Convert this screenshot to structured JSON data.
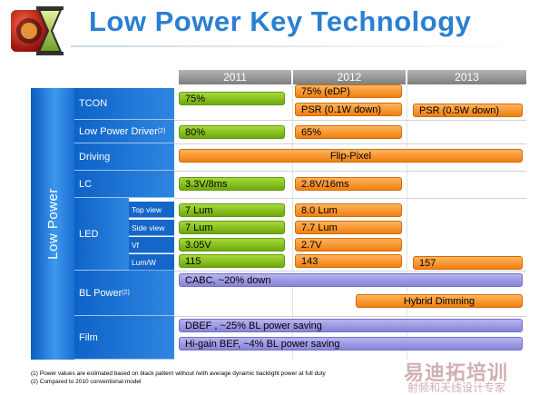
{
  "title": "Low Power Key Technology",
  "years": [
    "2011",
    "2012",
    "2013"
  ],
  "side_label": "Low Power",
  "categories": {
    "tcon": "TCON",
    "driver": "Low Power Driver",
    "driver_note": "(2)",
    "driving": "Driving",
    "lc": "LC",
    "led": "LED",
    "bl": "BL Power",
    "bl_note": "(2)",
    "film": "Film"
  },
  "led_sub": [
    "Top view",
    "Side view",
    "Vf",
    "Lum/W"
  ],
  "bars": {
    "tcon_2011": "75%",
    "tcon_2012a": "75% (eDP)",
    "tcon_2012b": "PSR (0.1W down)",
    "tcon_2013": "PSR (0.5W down)",
    "driver_2011": "80%",
    "driver_2012": "65%",
    "driving": "Flip-Pixel",
    "lc_2011": "3.3V/8ms",
    "lc_2012": "2.8V/16ms",
    "top_2011": "7 Lum",
    "top_2012": "8.0 Lum",
    "side_2011": "7 Lum",
    "side_2012": "7.7 Lum",
    "vf_2011": "3.05V",
    "vf_2012": "2.7V",
    "lumw_2011": "115",
    "lumw_2012": "143",
    "lumw_2013": "157",
    "cabc": "CABC, ~20% down",
    "hybrid": "Hybrid Dimming",
    "dbef": "DBEF , ~25% BL power saving",
    "higain": "Hi-gain BEF, ~4% BL  power saving"
  },
  "footnotes": [
    "(1) Power values are estimated based on black pattern without /with average dynamic backlight power at full duty",
    "(2) Compared to 2010 conventional model"
  ],
  "watermark": {
    "main": "易迪拓培训",
    "sub": "射频和天线设计专家"
  },
  "colors": {
    "title": "#2a7fd4",
    "band": "#1566c9",
    "green": "#8cc220",
    "orange": "#f59a30",
    "purple": "#9f9de4"
  }
}
